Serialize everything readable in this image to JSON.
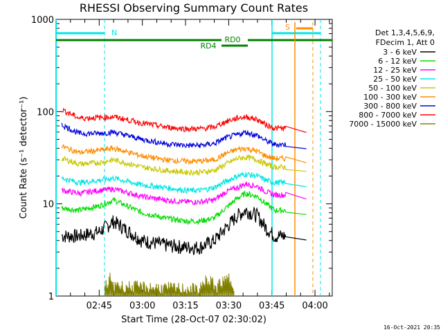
{
  "chart_data": {
    "type": "line",
    "title": "RHESSI Observing Summary Count Rates",
    "xlabel": "Start Time (28-Oct-07 02:30:02)",
    "ylabel": "Count Rate (s⁻¹ detector⁻¹)",
    "yscale": "log",
    "ylim": [
      1,
      1000
    ],
    "xlim_minutes": [
      0,
      96
    ],
    "y_ticks": [
      "1",
      "10",
      "100",
      "1000"
    ],
    "x_ticks": [
      {
        "label": "02:45",
        "minute": 15
      },
      {
        "label": "03:00",
        "minute": 30
      },
      {
        "label": "03:15",
        "minute": 45
      },
      {
        "label": "03:30",
        "minute": 60
      },
      {
        "label": "03:45",
        "minute": 75
      },
      {
        "label": "04:00",
        "minute": 90
      }
    ],
    "legend": {
      "placement": "right",
      "header": [
        "Det 1,3,4,5,6,9,",
        "FDecim 1, Att 0"
      ]
    },
    "series": [
      {
        "name": "3 - 6 keV",
        "color": "#000000",
        "x": [
          2,
          8,
          15,
          20,
          30,
          38,
          45,
          50,
          55,
          59,
          63,
          66,
          70,
          73,
          76,
          79,
          80
        ],
        "y": [
          4.5,
          4.5,
          5,
          6.5,
          4,
          3.6,
          3.4,
          3.4,
          4,
          5.5,
          7.5,
          8.5,
          7.5,
          5.5,
          4.5,
          4.5,
          4.5
        ]
      },
      {
        "name": "6 - 12 keV",
        "color": "#00dd00",
        "x": [
          2,
          8,
          15,
          20,
          30,
          38,
          45,
          50,
          55,
          59,
          63,
          66,
          70,
          73,
          76,
          79,
          80
        ],
        "y": [
          9,
          8.5,
          9.5,
          11,
          8,
          7,
          6.5,
          6.5,
          7,
          9,
          11.5,
          13,
          12,
          10,
          8.5,
          8.5,
          8.5
        ]
      },
      {
        "name": "12 - 25 keV",
        "color": "#ff00ff",
        "x": [
          2,
          8,
          15,
          20,
          30,
          38,
          45,
          50,
          55,
          59,
          63,
          66,
          70,
          73,
          76,
          79,
          80
        ],
        "y": [
          14,
          13,
          14,
          14.5,
          12,
          11,
          10.5,
          10.5,
          11,
          13.5,
          15,
          16.5,
          15.5,
          13.5,
          12.5,
          12.5,
          12.5
        ]
      },
      {
        "name": "25 - 50 keV",
        "color": "#00e5e5",
        "x": [
          2,
          8,
          15,
          20,
          30,
          38,
          45,
          50,
          55,
          59,
          63,
          66,
          70,
          73,
          76,
          79,
          80
        ],
        "y": [
          19,
          17,
          18,
          19,
          16,
          15,
          14,
          14,
          15,
          17.5,
          20,
          21,
          20,
          18,
          17,
          17,
          17
        ]
      },
      {
        "name": "50 - 100 keV",
        "color": "#c8c800",
        "x": [
          2,
          8,
          15,
          20,
          30,
          38,
          45,
          50,
          55,
          59,
          63,
          66,
          70,
          73,
          76,
          79,
          80
        ],
        "y": [
          31,
          27,
          28,
          30,
          25,
          23,
          22,
          22,
          23,
          27,
          31,
          32,
          30,
          27,
          25,
          25,
          25
        ]
      },
      {
        "name": "100 - 300 keV",
        "color": "#ff8c00",
        "x": [
          2,
          8,
          15,
          20,
          30,
          38,
          45,
          50,
          55,
          59,
          63,
          66,
          70,
          73,
          76,
          79,
          80
        ],
        "y": [
          42,
          36,
          38,
          40,
          33,
          30,
          29,
          29,
          30,
          35,
          39,
          40,
          37,
          33,
          31,
          31,
          31
        ]
      },
      {
        "name": "300 - 800 keV",
        "color": "#0000dd",
        "x": [
          2,
          8,
          15,
          20,
          30,
          38,
          45,
          50,
          55,
          59,
          63,
          66,
          70,
          73,
          76,
          79,
          80
        ],
        "y": [
          72,
          58,
          58,
          60,
          50,
          45,
          43,
          43,
          45,
          52,
          56,
          60,
          55,
          48,
          44,
          44,
          44
        ]
      },
      {
        "name": "800 - 7000 keV",
        "color": "#ff0000",
        "x": [
          2,
          8,
          15,
          20,
          30,
          38,
          45,
          50,
          55,
          59,
          63,
          66,
          70,
          73,
          76,
          79,
          80
        ],
        "y": [
          105,
          85,
          86,
          88,
          75,
          68,
          65,
          65,
          68,
          78,
          85,
          88,
          82,
          72,
          66,
          66,
          66
        ]
      },
      {
        "name": "7000 - 15000 keV",
        "color": "#808000",
        "x": [
          17,
          19,
          20,
          21,
          22,
          50,
          52,
          53,
          54,
          56,
          57,
          58,
          60,
          62
        ],
        "y": [
          1.3,
          1.6,
          1.2,
          1.5,
          1.3,
          1.2,
          1.6,
          1.3,
          1.5,
          1.2,
          1.5,
          1.4,
          1.6,
          1.3
        ]
      }
    ],
    "annotations": {
      "saa_label": "N",
      "flare_label": "S",
      "rd0_label": "RD0",
      "rd4_label": "RD4",
      "footer_date": "16-Oct-2021 20:35"
    }
  },
  "colors": {
    "attenuator": "#008000",
    "night": "#00e5e5",
    "flare": "#ff8c00"
  }
}
